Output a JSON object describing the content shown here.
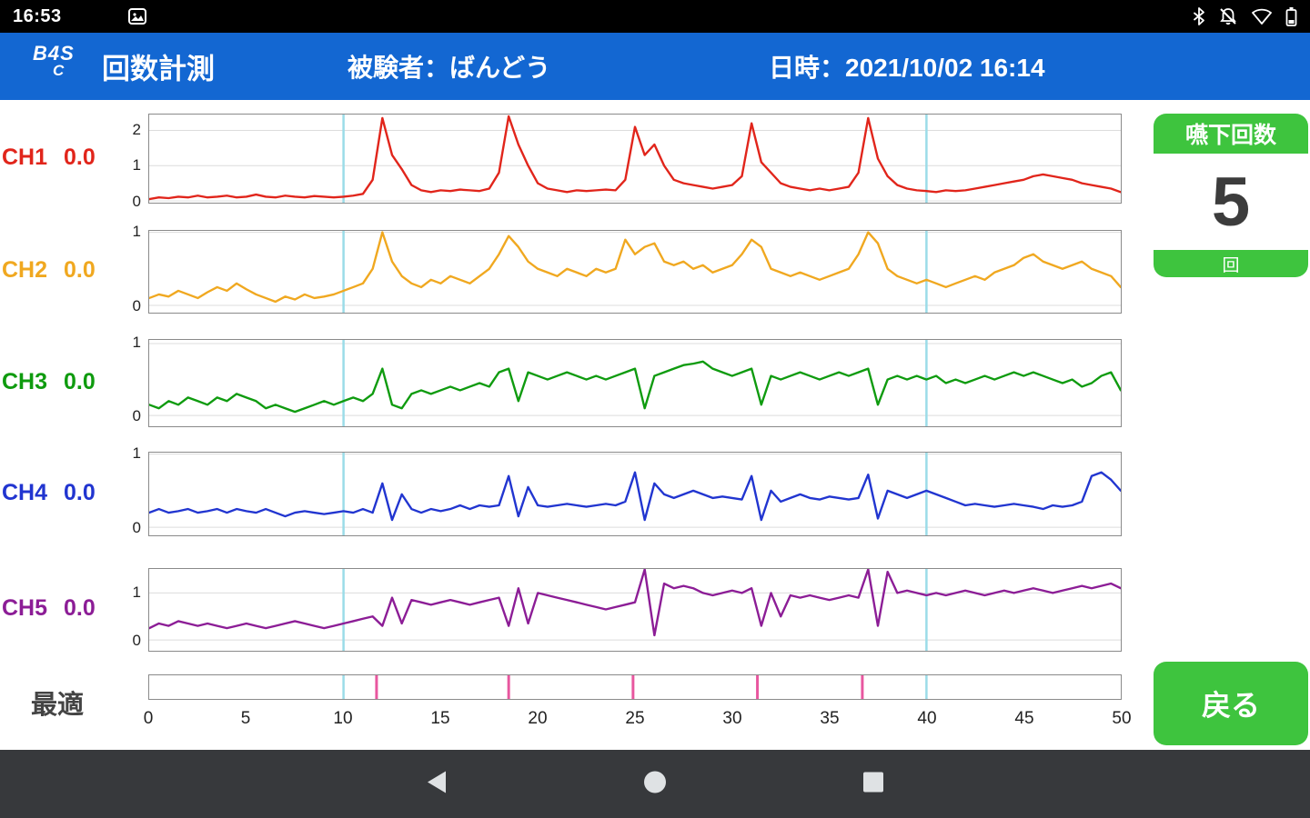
{
  "colors": {
    "app_bar": "#1367d2",
    "status_bar": "#000000",
    "nav_bar": "#37393c",
    "panel_green": "#3ec43e",
    "marker_cyan": "#9bdce8",
    "marker_pink": "#e8579f",
    "grid": "#dcdcdc",
    "chart_border": "#8a8a8a",
    "count_text": "#3c3c3c"
  },
  "status_bar": {
    "time": "16:53"
  },
  "app_bar": {
    "logo_line1": "B4S",
    "logo_line2": "C",
    "title": "回数計測",
    "subject": "被験者：ばんどう",
    "datetime": "日時：2021/10/02 16:14"
  },
  "swallow_panel": {
    "title": "嚥下回数",
    "count": "5",
    "unit": "回"
  },
  "back_button": {
    "label": "戻る"
  },
  "bottom_label": "最適",
  "chart_data": {
    "type": "line",
    "x_range": [
      0,
      50
    ],
    "x_step": 0.5,
    "xticks": [
      0,
      5,
      10,
      15,
      20,
      25,
      30,
      35,
      40,
      45,
      50
    ],
    "section_lines": [
      10,
      40
    ],
    "event_markers": [
      11.7,
      18.5,
      24.9,
      31.3,
      36.7
    ],
    "channels": [
      {
        "name": "CH1",
        "value": "0.0",
        "color": "#e1251b",
        "ylim": [
          -0.05,
          2.45
        ],
        "yticks": [
          0,
          1,
          2
        ],
        "values": [
          0.05,
          0.1,
          0.08,
          0.12,
          0.1,
          0.15,
          0.1,
          0.12,
          0.15,
          0.1,
          0.12,
          0.18,
          0.12,
          0.1,
          0.15,
          0.12,
          0.1,
          0.14,
          0.12,
          0.1,
          0.12,
          0.15,
          0.2,
          0.6,
          2.35,
          1.3,
          0.9,
          0.45,
          0.3,
          0.25,
          0.3,
          0.28,
          0.32,
          0.3,
          0.28,
          0.35,
          0.8,
          2.4,
          1.6,
          1.0,
          0.5,
          0.35,
          0.3,
          0.25,
          0.3,
          0.28,
          0.3,
          0.32,
          0.3,
          0.6,
          2.1,
          1.3,
          1.6,
          1.0,
          0.6,
          0.5,
          0.45,
          0.4,
          0.35,
          0.4,
          0.45,
          0.7,
          2.2,
          1.1,
          0.8,
          0.5,
          0.4,
          0.35,
          0.3,
          0.35,
          0.3,
          0.35,
          0.4,
          0.8,
          2.35,
          1.2,
          0.7,
          0.45,
          0.35,
          0.3,
          0.28,
          0.25,
          0.3,
          0.28,
          0.3,
          0.35,
          0.4,
          0.45,
          0.5,
          0.55,
          0.6,
          0.7,
          0.75,
          0.7,
          0.65,
          0.6,
          0.5,
          0.45,
          0.4,
          0.35,
          0.25
        ]
      },
      {
        "name": "CH2",
        "value": "0.0",
        "color": "#f0a820",
        "ylim": [
          -0.1,
          1.02
        ],
        "yticks": [
          0,
          1
        ],
        "values": [
          0.1,
          0.15,
          0.12,
          0.2,
          0.15,
          0.1,
          0.18,
          0.25,
          0.2,
          0.3,
          0.22,
          0.15,
          0.1,
          0.05,
          0.12,
          0.08,
          0.15,
          0.1,
          0.12,
          0.15,
          0.2,
          0.25,
          0.3,
          0.5,
          1.0,
          0.6,
          0.4,
          0.3,
          0.25,
          0.35,
          0.3,
          0.4,
          0.35,
          0.3,
          0.4,
          0.5,
          0.7,
          0.95,
          0.8,
          0.6,
          0.5,
          0.45,
          0.4,
          0.5,
          0.45,
          0.4,
          0.5,
          0.45,
          0.5,
          0.9,
          0.7,
          0.8,
          0.85,
          0.6,
          0.55,
          0.6,
          0.5,
          0.55,
          0.45,
          0.5,
          0.55,
          0.7,
          0.9,
          0.8,
          0.5,
          0.45,
          0.4,
          0.45,
          0.4,
          0.35,
          0.4,
          0.45,
          0.5,
          0.7,
          1.0,
          0.85,
          0.5,
          0.4,
          0.35,
          0.3,
          0.35,
          0.3,
          0.25,
          0.3,
          0.35,
          0.4,
          0.35,
          0.45,
          0.5,
          0.55,
          0.65,
          0.7,
          0.6,
          0.55,
          0.5,
          0.55,
          0.6,
          0.5,
          0.45,
          0.4,
          0.25
        ]
      },
      {
        "name": "CH3",
        "value": "0.0",
        "color": "#0f9b0f",
        "ylim": [
          -0.15,
          1.05
        ],
        "yticks": [
          0,
          1
        ],
        "values": [
          0.15,
          0.1,
          0.2,
          0.15,
          0.25,
          0.2,
          0.15,
          0.25,
          0.2,
          0.3,
          0.25,
          0.2,
          0.1,
          0.15,
          0.1,
          0.05,
          0.1,
          0.15,
          0.2,
          0.15,
          0.2,
          0.25,
          0.2,
          0.3,
          0.65,
          0.15,
          0.1,
          0.3,
          0.35,
          0.3,
          0.35,
          0.4,
          0.35,
          0.4,
          0.45,
          0.4,
          0.6,
          0.65,
          0.2,
          0.6,
          0.55,
          0.5,
          0.55,
          0.6,
          0.55,
          0.5,
          0.55,
          0.5,
          0.55,
          0.6,
          0.65,
          0.1,
          0.55,
          0.6,
          0.65,
          0.7,
          0.72,
          0.75,
          0.65,
          0.6,
          0.55,
          0.6,
          0.65,
          0.15,
          0.55,
          0.5,
          0.55,
          0.6,
          0.55,
          0.5,
          0.55,
          0.6,
          0.55,
          0.6,
          0.65,
          0.15,
          0.5,
          0.55,
          0.5,
          0.55,
          0.5,
          0.55,
          0.45,
          0.5,
          0.45,
          0.5,
          0.55,
          0.5,
          0.55,
          0.6,
          0.55,
          0.6,
          0.55,
          0.5,
          0.45,
          0.5,
          0.4,
          0.45,
          0.55,
          0.6,
          0.35
        ]
      },
      {
        "name": "CH4",
        "value": "0.0",
        "color": "#2135d0",
        "ylim": [
          -0.11,
          1.02
        ],
        "yticks": [
          0,
          1
        ],
        "values": [
          0.2,
          0.25,
          0.2,
          0.22,
          0.25,
          0.2,
          0.22,
          0.25,
          0.2,
          0.25,
          0.22,
          0.2,
          0.25,
          0.2,
          0.15,
          0.2,
          0.22,
          0.2,
          0.18,
          0.2,
          0.22,
          0.2,
          0.25,
          0.2,
          0.6,
          0.1,
          0.45,
          0.25,
          0.2,
          0.25,
          0.22,
          0.25,
          0.3,
          0.25,
          0.3,
          0.28,
          0.3,
          0.7,
          0.15,
          0.55,
          0.3,
          0.28,
          0.3,
          0.32,
          0.3,
          0.28,
          0.3,
          0.32,
          0.3,
          0.35,
          0.75,
          0.1,
          0.6,
          0.45,
          0.4,
          0.45,
          0.5,
          0.45,
          0.4,
          0.42,
          0.4,
          0.38,
          0.7,
          0.1,
          0.5,
          0.35,
          0.4,
          0.45,
          0.4,
          0.38,
          0.42,
          0.4,
          0.38,
          0.4,
          0.72,
          0.12,
          0.5,
          0.45,
          0.4,
          0.45,
          0.5,
          0.45,
          0.4,
          0.35,
          0.3,
          0.32,
          0.3,
          0.28,
          0.3,
          0.32,
          0.3,
          0.28,
          0.25,
          0.3,
          0.28,
          0.3,
          0.35,
          0.7,
          0.75,
          0.65,
          0.5
        ]
      },
      {
        "name": "CH5",
        "value": "0.0",
        "color": "#8c1d96",
        "ylim": [
          -0.23,
          1.51
        ],
        "yticks": [
          0,
          1
        ],
        "values": [
          0.25,
          0.35,
          0.3,
          0.4,
          0.35,
          0.3,
          0.35,
          0.3,
          0.25,
          0.3,
          0.35,
          0.3,
          0.25,
          0.3,
          0.35,
          0.4,
          0.35,
          0.3,
          0.25,
          0.3,
          0.35,
          0.4,
          0.45,
          0.5,
          0.3,
          0.9,
          0.35,
          0.85,
          0.8,
          0.75,
          0.8,
          0.85,
          0.8,
          0.75,
          0.8,
          0.85,
          0.9,
          0.3,
          1.1,
          0.35,
          1.0,
          0.95,
          0.9,
          0.85,
          0.8,
          0.75,
          0.7,
          0.65,
          0.7,
          0.75,
          0.8,
          1.5,
          0.1,
          1.2,
          1.1,
          1.15,
          1.1,
          1.0,
          0.95,
          1.0,
          1.05,
          1.0,
          1.1,
          0.3,
          1.0,
          0.5,
          0.95,
          0.9,
          0.95,
          0.9,
          0.85,
          0.9,
          0.95,
          0.9,
          1.5,
          0.3,
          1.45,
          1.0,
          1.05,
          1.0,
          0.95,
          1.0,
          0.95,
          1.0,
          1.05,
          1.0,
          0.95,
          1.0,
          1.05,
          1.0,
          1.05,
          1.1,
          1.05,
          1.0,
          1.05,
          1.1,
          1.15,
          1.1,
          1.15,
          1.2,
          1.1
        ]
      }
    ]
  }
}
